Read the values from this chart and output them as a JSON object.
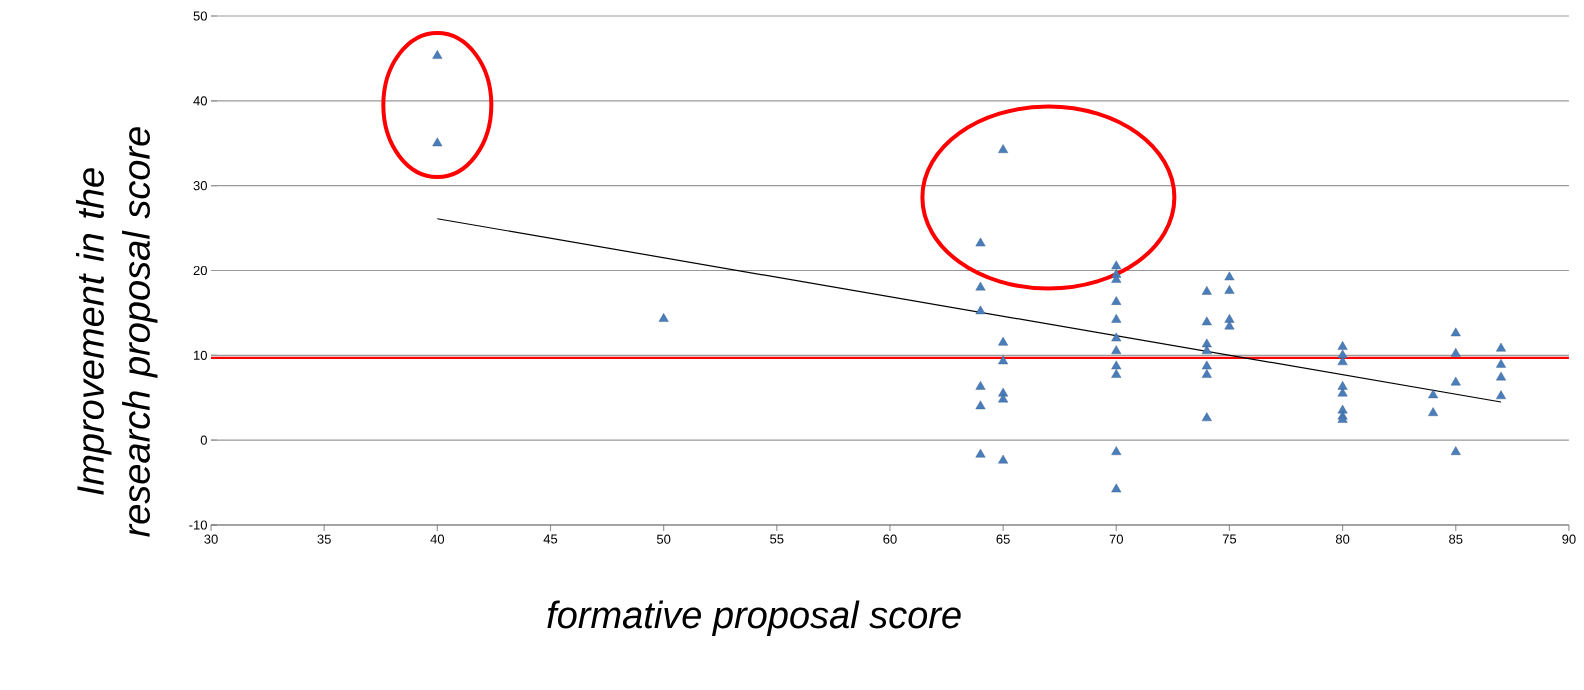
{
  "chart_data": {
    "type": "scatter",
    "xlabel": "formative proposal score",
    "ylabel": "Improvement in the research proposal score",
    "xlim": [
      30,
      90
    ],
    "xticks": [
      30,
      35,
      40,
      45,
      50,
      55,
      60,
      65,
      70,
      75,
      80,
      85,
      90
    ],
    "ylim": [
      -10,
      50
    ],
    "yticks": [
      -10,
      0,
      10,
      20,
      30,
      40,
      50
    ],
    "grid": "y",
    "marker": "triangle",
    "series": [
      {
        "type": "scatter",
        "color": "#4a7ebb",
        "x": [
          40,
          40,
          50,
          64,
          64,
          64,
          64,
          64,
          64,
          65,
          65,
          65,
          65,
          65,
          65,
          70,
          70,
          70,
          70,
          70,
          70,
          70,
          70,
          70,
          70,
          70,
          74,
          74,
          74,
          74,
          74,
          74,
          74,
          75,
          75,
          75,
          75,
          80,
          80,
          80,
          80,
          80,
          80,
          80,
          80,
          84,
          84,
          85,
          85,
          85,
          85,
          87,
          87,
          87,
          87
        ],
        "values": [
          45.3,
          35,
          14.3,
          23.2,
          18,
          15.2,
          6.3,
          4,
          -1.7,
          34.2,
          11.5,
          9.3,
          5.5,
          4.8,
          -2.4,
          20.5,
          19.5,
          18.9,
          16.3,
          14.2,
          12,
          10.5,
          8.7,
          7.7,
          -1.4,
          -5.8,
          17.5,
          13.9,
          11.3,
          10.5,
          8.7,
          7.7,
          2.6,
          19.2,
          17.6,
          14.2,
          13.4,
          11,
          10,
          9.2,
          6.3,
          5.5,
          3.5,
          2.8,
          2.4,
          5.3,
          3.2,
          12.6,
          10.2,
          6.8,
          -1.4,
          10.8,
          8.9,
          7.4,
          5.2
        ]
      },
      {
        "type": "line",
        "color": "#000000",
        "marker": "none",
        "line_style": "solid",
        "x": [
          40,
          87
        ],
        "values": [
          26.1,
          4.5
        ]
      }
    ],
    "ref_lines": [
      {
        "axis": "y",
        "value": 9.7,
        "color": "#ff0000"
      }
    ]
  }
}
